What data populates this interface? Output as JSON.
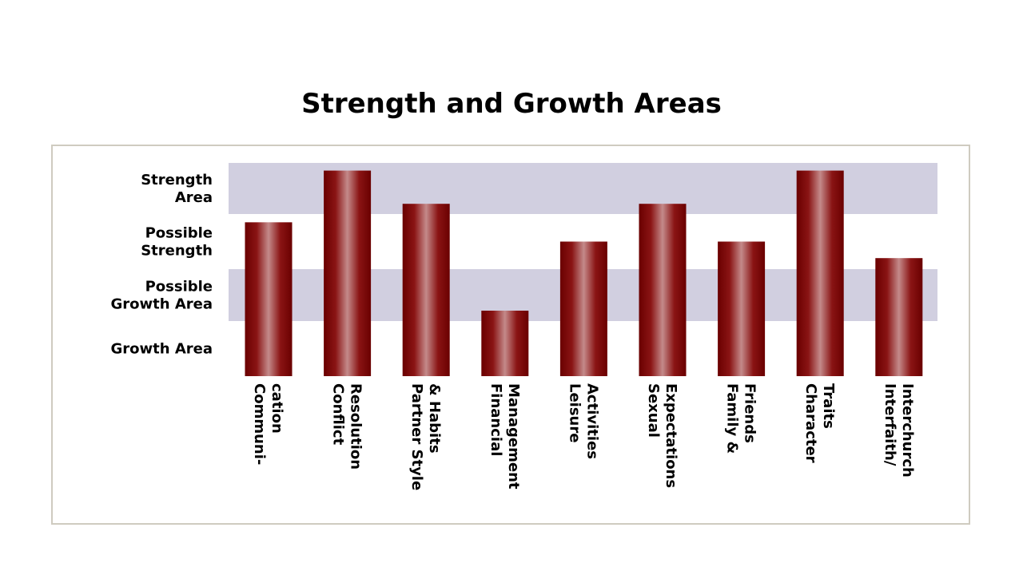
{
  "page": {
    "title": "Strength and Growth Areas"
  },
  "colors": {
    "band": "#d1cfe0",
    "bar_dark": "#6a0000",
    "bar_mid": "#8a1414",
    "bar_highlight": "#c48a8a",
    "frame_border": "#cfcbc0"
  },
  "chart_data": {
    "type": "bar",
    "title": "Strength and Growth Areas",
    "y_levels": [
      {
        "label_lines": [
          "Strength",
          "Area"
        ],
        "band": [
          3,
          4
        ],
        "shaded": true
      },
      {
        "label_lines": [
          "Possible",
          "Strength"
        ],
        "band": [
          2,
          3
        ],
        "shaded": false
      },
      {
        "label_lines": [
          "Possible",
          "Growth Area"
        ],
        "band": [
          1,
          2
        ],
        "shaded": true
      },
      {
        "label_lines": [
          "Growth Area"
        ],
        "band": [
          0,
          1
        ],
        "shaded": false
      }
    ],
    "ylim": [
      0,
      4
    ],
    "categories": [
      {
        "label_lines": [
          "Communi-",
          "cation"
        ]
      },
      {
        "label_lines": [
          "Conflict",
          "Resolution"
        ]
      },
      {
        "label_lines": [
          "Partner Style",
          "& Habits"
        ]
      },
      {
        "label_lines": [
          "Financial",
          "Management"
        ]
      },
      {
        "label_lines": [
          "Leisure",
          "Activities"
        ]
      },
      {
        "label_lines": [
          "Sexual",
          "Expectations"
        ]
      },
      {
        "label_lines": [
          "Family &",
          "Friends"
        ]
      },
      {
        "label_lines": [
          "Character",
          "Traits"
        ]
      },
      {
        "label_lines": [
          "Interfaith/",
          "Interchurch"
        ]
      }
    ],
    "values": [
      2.85,
      3.85,
      3.2,
      1.2,
      2.5,
      3.2,
      2.5,
      3.85,
      2.2
    ]
  }
}
